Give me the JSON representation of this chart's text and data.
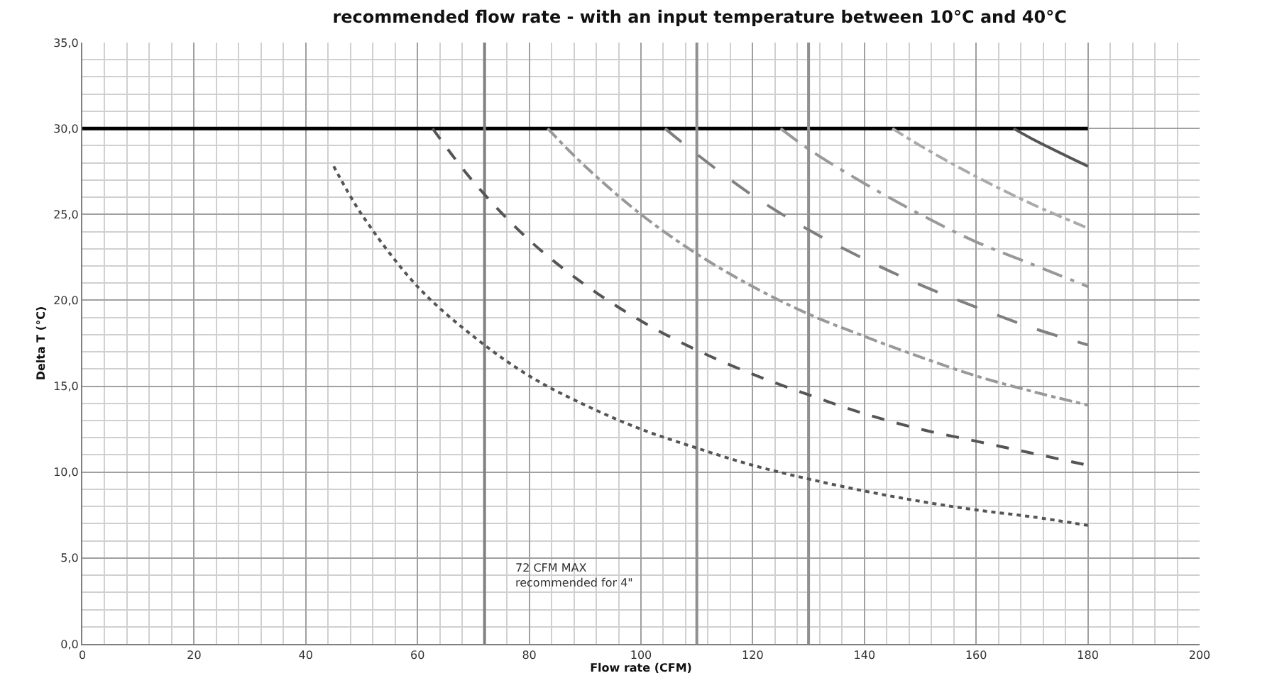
{
  "chart_data": {
    "type": "line",
    "title": "recommended flow rate - with an input temperature between 10°C and 40°C",
    "xlabel": "Flow rate (CFM)",
    "ylabel": "Delta T (°C)",
    "xlim": [
      0,
      200
    ],
    "ylim": [
      0,
      35
    ],
    "xticks": [
      0,
      20,
      40,
      60,
      80,
      100,
      120,
      140,
      160,
      180,
      200
    ],
    "yticks": [
      {
        "value": 0,
        "label": "0,0"
      },
      {
        "value": 5,
        "label": "5,0"
      },
      {
        "value": 10,
        "label": "10,0"
      },
      {
        "value": 15,
        "label": "15,0"
      },
      {
        "value": 20,
        "label": "20,0"
      },
      {
        "value": 25,
        "label": "25,0"
      },
      {
        "value": 30,
        "label": "30,0"
      },
      {
        "value": 35,
        "label": "35,0"
      }
    ],
    "grid": true,
    "marker": "none",
    "series": [
      {
        "color": "#555555",
        "line_style": "dotted",
        "x": [
          45,
          50,
          60,
          70,
          80,
          90,
          100,
          110,
          120,
          130,
          140,
          150,
          160,
          170,
          180
        ],
        "values": [
          27.8,
          25,
          20.8,
          17.9,
          15.6,
          13.9,
          12.5,
          11.4,
          10.4,
          9.6,
          8.9,
          8.3,
          7.8,
          7.4,
          6.9
        ]
      },
      {
        "color": "#555555",
        "line_style": "dashed",
        "x": [
          62.7,
          70,
          80,
          90,
          100,
          110,
          120,
          130,
          140,
          150,
          160,
          170,
          180
        ],
        "values": [
          30,
          26.9,
          23.5,
          20.9,
          18.8,
          17.1,
          15.7,
          14.5,
          13.4,
          12.5,
          11.8,
          11.1,
          10.4
        ]
      },
      {
        "color": "#999999",
        "line_style": "dashdot",
        "x": [
          83.3,
          90,
          100,
          110,
          120,
          130,
          140,
          150,
          160,
          170,
          180
        ],
        "values": [
          30,
          27.8,
          25,
          22.7,
          20.8,
          19.2,
          17.9,
          16.7,
          15.6,
          14.7,
          13.9
        ]
      },
      {
        "color": "#808080",
        "line_style": "longdash",
        "x": [
          104.3,
          110,
          120,
          130,
          140,
          150,
          160,
          170,
          180
        ],
        "values": [
          30,
          28.5,
          26.1,
          24.1,
          22.4,
          20.9,
          19.6,
          18.4,
          17.4
        ]
      },
      {
        "color": "#999999",
        "line_style": "longdashdot",
        "x": [
          125,
          130,
          140,
          150,
          160,
          170,
          180
        ],
        "values": [
          30,
          28.8,
          26.8,
          25,
          23.4,
          22.1,
          20.8
        ]
      },
      {
        "color": "#aaaaaa",
        "line_style": "dashdot",
        "x": [
          145,
          150,
          160,
          170,
          180
        ],
        "values": [
          30,
          29,
          27.2,
          25.6,
          24.2
        ]
      },
      {
        "color": "#555555",
        "line_style": "solid",
        "x": [
          166.7,
          170,
          180
        ],
        "values": [
          30,
          29.4,
          27.8
        ]
      }
    ],
    "ref_lines": [
      {
        "axis": "y",
        "value": 30,
        "color": "#000000"
      },
      {
        "axis": "x",
        "value": 72,
        "color": "#808080"
      },
      {
        "axis": "x",
        "value": 110,
        "color": "#909090"
      },
      {
        "axis": "x",
        "value": 130,
        "color": "#909090"
      }
    ],
    "annotations": [
      "72 CFM MAX\nrecommended for 4\""
    ]
  }
}
